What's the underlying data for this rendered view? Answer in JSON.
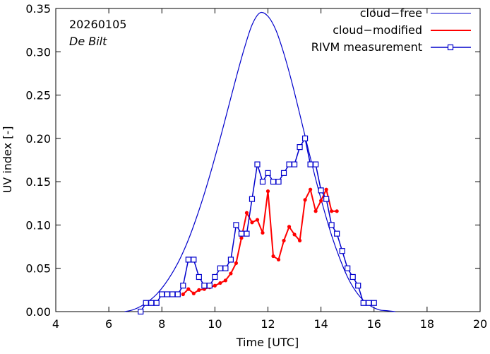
{
  "chart_data": {
    "type": "line",
    "title": "",
    "xlabel": "Time  [UTC]",
    "ylabel": "UV index  [-]",
    "xlim": [
      4,
      20
    ],
    "ylim": [
      0,
      0.35
    ],
    "xticks": [
      4,
      6,
      8,
      10,
      12,
      14,
      16,
      18,
      20
    ],
    "yticks": [
      0,
      0.05,
      0.1,
      0.15,
      0.2,
      0.25,
      0.3,
      0.35
    ],
    "xtick_labels": [
      "4",
      "6",
      "8",
      "10",
      "12",
      "14",
      "16",
      "18",
      "20"
    ],
    "ytick_labels": [
      "0.00",
      "0.05",
      "0.10",
      "0.15",
      "0.20",
      "0.25",
      "0.30",
      "0.35"
    ],
    "annotations": {
      "date": "20260105",
      "station": "De Bilt"
    },
    "legend": {
      "placement": "top-right",
      "entries": [
        "cloud−free",
        "cloud−modified",
        "RIVM measurement"
      ]
    },
    "series": [
      {
        "name": "cloud-free",
        "color": "#0000cc",
        "marker": "none",
        "x": [
          6.6,
          6.9,
          7.2,
          7.5,
          7.8,
          8.1,
          8.4,
          8.7,
          9.0,
          9.3,
          9.6,
          9.9,
          10.2,
          10.5,
          10.8,
          11.1,
          11.4,
          11.7,
          12.0,
          12.3,
          12.6,
          12.9,
          13.2,
          13.5,
          13.8,
          14.1,
          14.4,
          14.7,
          15.0,
          15.3,
          15.6,
          15.9,
          16.2,
          16.5,
          16.8
        ],
        "y": [
          0.0,
          0.002,
          0.006,
          0.012,
          0.02,
          0.031,
          0.045,
          0.062,
          0.083,
          0.108,
          0.136,
          0.167,
          0.2,
          0.235,
          0.27,
          0.303,
          0.331,
          0.345,
          0.341,
          0.325,
          0.298,
          0.265,
          0.228,
          0.19,
          0.153,
          0.119,
          0.088,
          0.062,
          0.04,
          0.024,
          0.013,
          0.006,
          0.002,
          0.001,
          0.0
        ]
      },
      {
        "name": "cloud-modified",
        "color": "#ff0000",
        "marker": "dot",
        "x": [
          8.8,
          9.0,
          9.2,
          9.4,
          9.6,
          9.8,
          10.0,
          10.2,
          10.4,
          10.6,
          10.8,
          11.0,
          11.2,
          11.4,
          11.6,
          11.8,
          12.0,
          12.2,
          12.4,
          12.6,
          12.8,
          13.0,
          13.2,
          13.4,
          13.6,
          13.8,
          14.0,
          14.2,
          14.4,
          14.6
        ],
        "y": [
          0.02,
          0.026,
          0.021,
          0.025,
          0.026,
          0.028,
          0.03,
          0.033,
          0.036,
          0.044,
          0.056,
          0.085,
          0.114,
          0.103,
          0.106,
          0.091,
          0.139,
          0.064,
          0.06,
          0.082,
          0.098,
          0.089,
          0.082,
          0.129,
          0.141,
          0.116,
          0.128,
          0.141,
          0.116,
          0.116
        ]
      },
      {
        "name": "RIVM measurement",
        "color": "#0000cc",
        "marker": "square",
        "x": [
          7.2,
          7.4,
          7.6,
          7.8,
          8.0,
          8.2,
          8.4,
          8.6,
          8.8,
          9.0,
          9.2,
          9.4,
          9.6,
          9.8,
          10.0,
          10.2,
          10.4,
          10.6,
          10.8,
          11.0,
          11.2,
          11.4,
          11.6,
          11.8,
          12.0,
          12.2,
          12.4,
          12.6,
          12.8,
          13.0,
          13.2,
          13.4,
          13.6,
          13.8,
          14.0,
          14.2,
          14.4,
          14.6,
          14.8,
          15.0,
          15.2,
          15.4,
          15.6,
          15.8,
          16.0
        ],
        "y": [
          0.0,
          0.01,
          0.01,
          0.01,
          0.02,
          0.02,
          0.02,
          0.02,
          0.03,
          0.06,
          0.06,
          0.04,
          0.03,
          0.03,
          0.04,
          0.05,
          0.05,
          0.06,
          0.1,
          0.09,
          0.09,
          0.13,
          0.17,
          0.15,
          0.16,
          0.15,
          0.15,
          0.16,
          0.17,
          0.17,
          0.19,
          0.2,
          0.17,
          0.17,
          0.14,
          0.13,
          0.1,
          0.09,
          0.07,
          0.05,
          0.04,
          0.03,
          0.01,
          0.01,
          0.01
        ]
      }
    ]
  }
}
